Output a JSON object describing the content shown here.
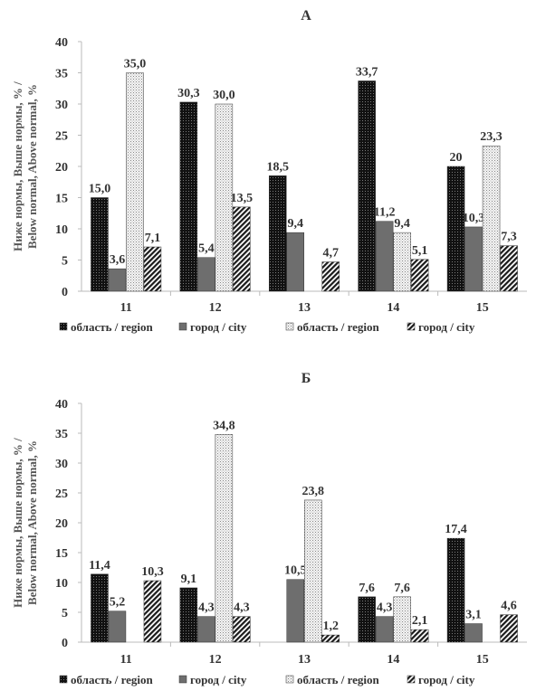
{
  "chart_data": [
    {
      "type": "bar",
      "title": "А",
      "ylabel_lines": [
        "Ниже нормы, Выше нормы, % /",
        "Below normal, Above normal, %"
      ],
      "ylim": [
        0,
        40
      ],
      "yticks": [
        0,
        5,
        10,
        15,
        20,
        25,
        30,
        35,
        40
      ],
      "categories": [
        "11",
        "12",
        "13",
        "14",
        "15"
      ],
      "series": [
        {
          "name": "область / region",
          "pattern": "dark-dots",
          "values": [
            15.0,
            30.3,
            18.5,
            33.7,
            20
          ],
          "labels": [
            "15,0",
            "30,3",
            "18,5",
            "33,7",
            "20"
          ]
        },
        {
          "name": "город / city",
          "pattern": "gray",
          "values": [
            3.6,
            5.4,
            9.4,
            11.2,
            10.3
          ],
          "labels": [
            "3,6",
            "5,4",
            "9,4",
            "11,2",
            "10,3"
          ]
        },
        {
          "name": "область / region",
          "pattern": "light-dots",
          "values": [
            35.0,
            30.0,
            null,
            9.4,
            23.3
          ],
          "labels": [
            "35,0",
            "30,0",
            "",
            "9,4",
            "23,3"
          ]
        },
        {
          "name": "город / city",
          "pattern": "diag",
          "values": [
            7.1,
            13.5,
            4.7,
            5.1,
            7.3
          ],
          "labels": [
            "7,1",
            "13,5",
            "4,7",
            "5,1",
            "7,3"
          ]
        }
      ],
      "grid": false,
      "legend_position": "bottom"
    },
    {
      "type": "bar",
      "title": "Б",
      "ylabel_lines": [
        "Ниже нормы, Выше нормы, % /",
        "Below normal, Above normal, %"
      ],
      "ylim": [
        0,
        40
      ],
      "yticks": [
        0,
        5,
        10,
        15,
        20,
        25,
        30,
        35,
        40
      ],
      "categories": [
        "11",
        "12",
        "13",
        "14",
        "15"
      ],
      "series": [
        {
          "name": "область / region",
          "pattern": "dark-dots",
          "values": [
            11.4,
            9.1,
            null,
            7.6,
            17.4
          ],
          "labels": [
            "11,4",
            "9,1",
            "",
            "7,6",
            "17,4"
          ]
        },
        {
          "name": "город / city",
          "pattern": "gray",
          "values": [
            5.2,
            4.3,
            10.5,
            4.3,
            3.1
          ],
          "labels": [
            "5,2",
            "4,3",
            "10,5",
            "4,3",
            "3,1"
          ]
        },
        {
          "name": "область / region",
          "pattern": "light-dots",
          "values": [
            null,
            34.8,
            23.8,
            7.6,
            null
          ],
          "labels": [
            "",
            "34,8",
            "23,8",
            "7,6",
            ""
          ]
        },
        {
          "name": "город / city",
          "pattern": "diag",
          "values": [
            10.3,
            4.3,
            1.2,
            2.1,
            4.6
          ],
          "labels": [
            "10,3",
            "4,3",
            "1,2",
            "2,1",
            "4,6"
          ]
        }
      ],
      "grid": false,
      "legend_position": "bottom"
    }
  ]
}
